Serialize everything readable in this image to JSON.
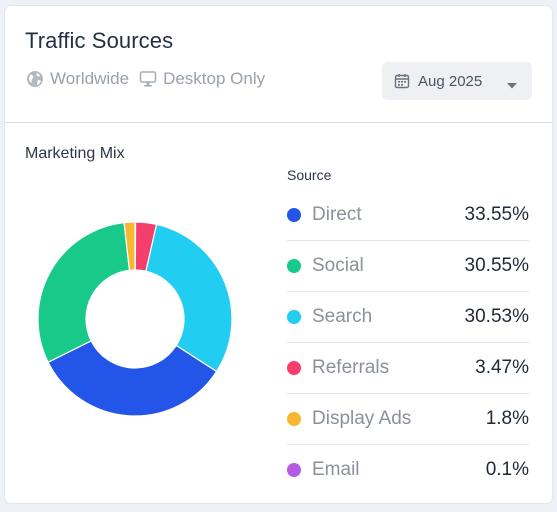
{
  "card": {
    "title": "Traffic Sources",
    "filters": [
      {
        "label": "Worldwide",
        "icon": "globe-icon"
      },
      {
        "label": "Desktop Only",
        "icon": "desktop-icon"
      }
    ],
    "date_select": {
      "value": "Aug 2025",
      "icon": "calendar-icon"
    }
  },
  "section": {
    "label": "Marketing Mix"
  },
  "legend": {
    "header": "Source",
    "items": [
      {
        "name": "Direct",
        "value": "33.55%",
        "color": "#2356e8"
      },
      {
        "name": "Social",
        "value": "30.55%",
        "color": "#18c98a"
      },
      {
        "name": "Search",
        "value": "30.53%",
        "color": "#22cdf2"
      },
      {
        "name": "Referrals",
        "value": "3.47%",
        "color": "#f43f6e"
      },
      {
        "name": "Display Ads",
        "value": "1.8%",
        "color": "#f7b731"
      },
      {
        "name": "Email",
        "value": "0.1%",
        "color": "#b55be6"
      }
    ]
  },
  "chart_data": {
    "type": "pie",
    "title": "Marketing Mix",
    "categories": [
      "Direct",
      "Social",
      "Search",
      "Referrals",
      "Display Ads",
      "Email"
    ],
    "values": [
      33.55,
      30.55,
      30.53,
      3.47,
      1.8,
      0.1
    ],
    "colors": [
      "#2356e8",
      "#18c98a",
      "#22cdf2",
      "#f43f6e",
      "#f7b731",
      "#b55be6"
    ],
    "order_clockwise_from_top": [
      "Email",
      "Referrals",
      "Search",
      "Direct",
      "Social",
      "Display Ads"
    ],
    "donut": true,
    "legend": "right"
  }
}
